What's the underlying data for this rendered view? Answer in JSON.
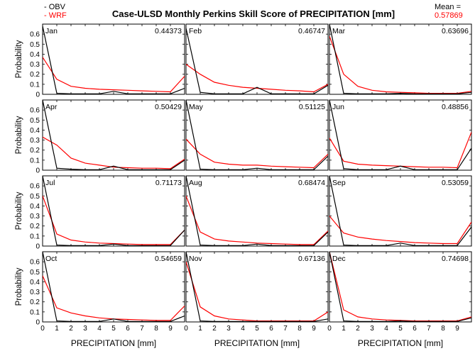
{
  "chart_data": {
    "type": "line",
    "title": "Case-ULSD Monthly Perkins Skill Score of PRECIPITATION [mm]",
    "xlabel": "PRECIPITATION [mm]",
    "ylabel": "Probability",
    "xlim": [
      0,
      10
    ],
    "ylim": [
      0,
      0.7
    ],
    "xticks": [
      0,
      1,
      2,
      3,
      4,
      5,
      6,
      7,
      8,
      9
    ],
    "yticks": [
      0,
      0.1,
      0.2,
      0.3,
      0.4,
      0.5,
      0.6
    ],
    "x": [
      0,
      1,
      2,
      3,
      4,
      5,
      6,
      7,
      8,
      9,
      10
    ],
    "legend": [
      {
        "label": "- OBV",
        "color": "#000000"
      },
      {
        "label": "- WRF",
        "color": "#ff0000"
      }
    ],
    "mean_label": "Mean =",
    "mean_value": "0.57869",
    "panels": [
      {
        "month": "Jan",
        "score": "0.44373",
        "series": [
          {
            "name": "OBV",
            "values": [
              0.68,
              0.01,
              0.005,
              0.005,
              0.005,
              0.03,
              0.005,
              0.005,
              0.005,
              0.005,
              0.06
            ]
          },
          {
            "name": "WRF",
            "values": [
              0.37,
              0.15,
              0.08,
              0.06,
              0.05,
              0.045,
              0.04,
              0.035,
              0.03,
              0.025,
              0.18
            ]
          }
        ]
      },
      {
        "month": "Feb",
        "score": "0.46747",
        "series": [
          {
            "name": "OBV",
            "values": [
              0.66,
              0.02,
              0.005,
              0.005,
              0.005,
              0.07,
              0.005,
              0.005,
              0.005,
              0.005,
              0.09
            ]
          },
          {
            "name": "WRF",
            "values": [
              0.3,
              0.2,
              0.12,
              0.09,
              0.07,
              0.06,
              0.05,
              0.04,
              0.035,
              0.025,
              0.1
            ]
          }
        ]
      },
      {
        "month": "Mar",
        "score": "0.63696",
        "series": [
          {
            "name": "OBV",
            "values": [
              0.7,
              0.01,
              0.005,
              0.005,
              0.005,
              0.01,
              0.005,
              0.005,
              0.005,
              0.005,
              0.02
            ]
          },
          {
            "name": "WRF",
            "values": [
              0.58,
              0.2,
              0.08,
              0.04,
              0.025,
              0.02,
              0.015,
              0.01,
              0.01,
              0.01,
              0.03
            ]
          }
        ]
      },
      {
        "month": "Apr",
        "score": "0.50429",
        "series": [
          {
            "name": "OBV",
            "values": [
              0.7,
              0.02,
              0.01,
              0.005,
              0.005,
              0.04,
              0.005,
              0.005,
              0.005,
              0.005,
              0.1
            ]
          },
          {
            "name": "WRF",
            "values": [
              0.33,
              0.25,
              0.12,
              0.07,
              0.05,
              0.03,
              0.025,
              0.02,
              0.02,
              0.015,
              0.11
            ]
          }
        ]
      },
      {
        "month": "May",
        "score": "0.51125",
        "series": [
          {
            "name": "OBV",
            "values": [
              0.7,
              0.01,
              0.005,
              0.005,
              0.005,
              0.02,
              0.005,
              0.005,
              0.005,
              0.005,
              0.14
            ]
          },
          {
            "name": "WRF",
            "values": [
              0.31,
              0.16,
              0.08,
              0.06,
              0.05,
              0.05,
              0.04,
              0.035,
              0.03,
              0.025,
              0.16
            ]
          }
        ]
      },
      {
        "month": "Jun",
        "score": "0.48856",
        "series": [
          {
            "name": "OBV",
            "values": [
              0.7,
              0.015,
              0.005,
              0.005,
              0.005,
              0.04,
              0.005,
              0.005,
              0.005,
              0.005,
              0.22
            ]
          },
          {
            "name": "WRF",
            "values": [
              0.32,
              0.09,
              0.06,
              0.05,
              0.045,
              0.04,
              0.035,
              0.03,
              0.03,
              0.025,
              0.38
            ]
          }
        ]
      },
      {
        "month": "Jul",
        "score": "0.71173",
        "series": [
          {
            "name": "OBV",
            "values": [
              0.7,
              0.01,
              0.005,
              0.005,
              0.005,
              0.02,
              0.005,
              0.005,
              0.005,
              0.005,
              0.16
            ]
          },
          {
            "name": "WRF",
            "values": [
              0.5,
              0.12,
              0.06,
              0.04,
              0.03,
              0.025,
              0.02,
              0.015,
              0.015,
              0.015,
              0.16
            ]
          }
        ]
      },
      {
        "month": "Aug",
        "score": "0.68474",
        "series": [
          {
            "name": "OBV",
            "values": [
              0.7,
              0.01,
              0.005,
              0.005,
              0.005,
              0.02,
              0.005,
              0.005,
              0.005,
              0.005,
              0.14
            ]
          },
          {
            "name": "WRF",
            "values": [
              0.5,
              0.14,
              0.07,
              0.05,
              0.04,
              0.03,
              0.025,
              0.02,
              0.015,
              0.015,
              0.15
            ]
          }
        ]
      },
      {
        "month": "Sep",
        "score": "0.53059",
        "series": [
          {
            "name": "OBV",
            "values": [
              0.7,
              0.01,
              0.005,
              0.005,
              0.005,
              0.03,
              0.005,
              0.005,
              0.005,
              0.005,
              0.19
            ]
          },
          {
            "name": "WRF",
            "values": [
              0.3,
              0.13,
              0.09,
              0.07,
              0.055,
              0.045,
              0.035,
              0.03,
              0.025,
              0.025,
              0.24
            ]
          }
        ]
      },
      {
        "month": "Oct",
        "score": "0.54659",
        "series": [
          {
            "name": "OBV",
            "values": [
              0.7,
              0.01,
              0.005,
              0.005,
              0.005,
              0.03,
              0.005,
              0.005,
              0.005,
              0.005,
              0.06
            ]
          },
          {
            "name": "WRF",
            "values": [
              0.46,
              0.14,
              0.09,
              0.06,
              0.04,
              0.03,
              0.025,
              0.02,
              0.015,
              0.015,
              0.16
            ]
          }
        ]
      },
      {
        "month": "Nov",
        "score": "0.67136",
        "series": [
          {
            "name": "OBV",
            "values": [
              0.7,
              0.01,
              0.005,
              0.005,
              0.005,
              0.005,
              0.005,
              0.005,
              0.005,
              0.005,
              0.03
            ]
          },
          {
            "name": "WRF",
            "values": [
              0.6,
              0.15,
              0.06,
              0.03,
              0.02,
              0.01,
              0.01,
              0.01,
              0.01,
              0.01,
              0.1
            ]
          }
        ]
      },
      {
        "month": "Dec",
        "score": "0.74698",
        "series": [
          {
            "name": "OBV",
            "values": [
              0.7,
              0.01,
              0.005,
              0.005,
              0.005,
              0.01,
              0.005,
              0.005,
              0.005,
              0.005,
              0.04
            ]
          },
          {
            "name": "WRF",
            "values": [
              0.7,
              0.12,
              0.05,
              0.03,
              0.02,
              0.015,
              0.01,
              0.01,
              0.01,
              0.01,
              0.05
            ]
          }
        ]
      }
    ]
  }
}
